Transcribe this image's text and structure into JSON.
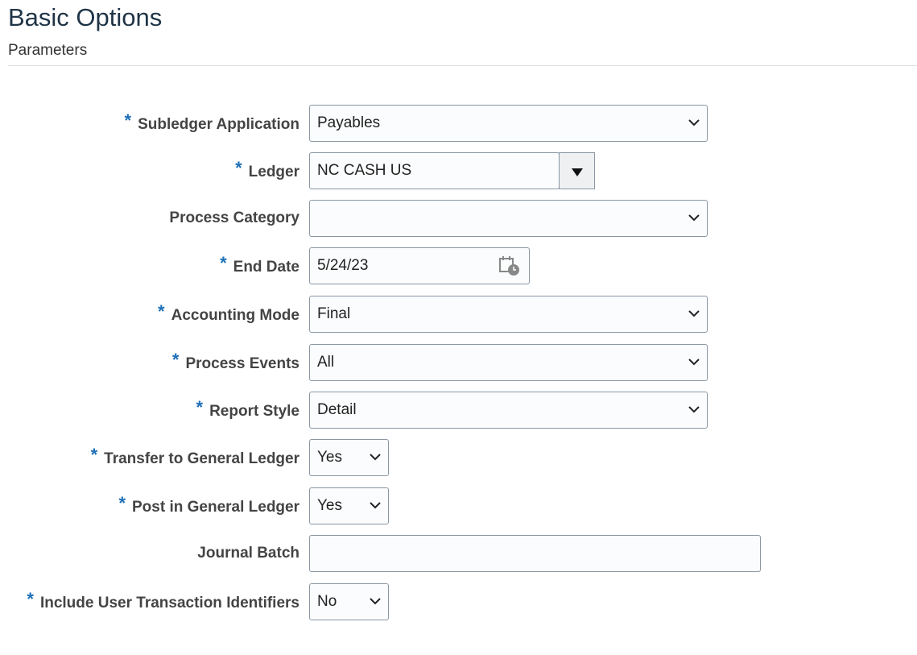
{
  "header": {
    "title": "Basic Options",
    "subtitle": "Parameters"
  },
  "fields": [
    {
      "label": "Subledger Application",
      "required": true,
      "value": "Payables",
      "type": "select"
    },
    {
      "label": "Ledger",
      "required": true,
      "value": "NC CASH US",
      "type": "combo"
    },
    {
      "label": "Process Category",
      "required": false,
      "value": "",
      "type": "select"
    },
    {
      "label": "End Date",
      "required": true,
      "value": "5/24/23",
      "type": "date"
    },
    {
      "label": "Accounting Mode",
      "required": true,
      "value": "Final",
      "type": "select"
    },
    {
      "label": "Process Events",
      "required": true,
      "value": "All",
      "type": "select"
    },
    {
      "label": "Report Style",
      "required": true,
      "value": "Detail",
      "type": "select"
    },
    {
      "label": "Transfer to General Ledger",
      "required": true,
      "value": "Yes",
      "type": "small-select"
    },
    {
      "label": "Post in General Ledger",
      "required": true,
      "value": "Yes",
      "type": "small-select"
    },
    {
      "label": "Journal Batch",
      "required": false,
      "value": "",
      "type": "text"
    },
    {
      "label": "Include User Transaction Identifiers",
      "required": true,
      "value": "No",
      "type": "small-select"
    }
  ],
  "required_marker": "*",
  "colors": {
    "title": "#1f3447",
    "required": "#1d6fb8",
    "border": "#8a97a3"
  }
}
